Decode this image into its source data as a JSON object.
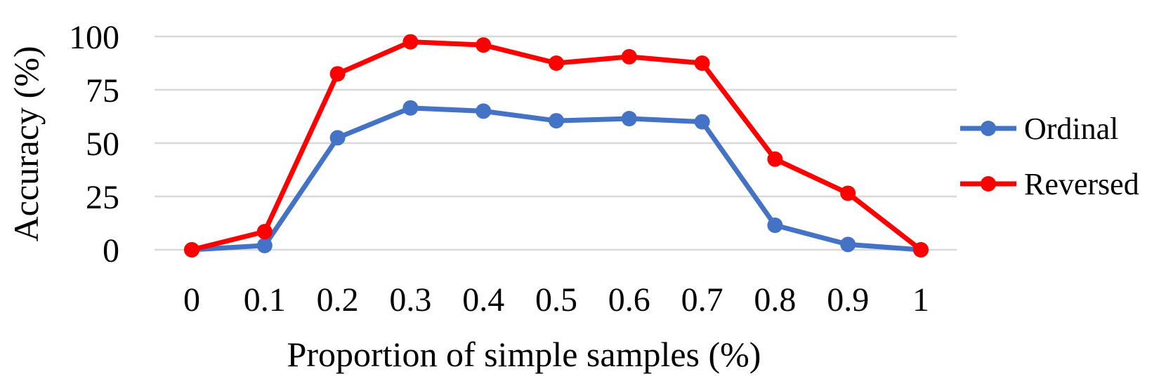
{
  "chart_data": {
    "type": "line",
    "title": "",
    "xlabel": "Proportion of simple samples (%)",
    "ylabel": "Accuracy (%)",
    "categories": [
      "0",
      "0.1",
      "0.2",
      "0.3",
      "0.4",
      "0.5",
      "0.6",
      "0.7",
      "0.8",
      "0.9",
      "1"
    ],
    "y_ticks": [
      "0",
      "25",
      "50",
      "75",
      "100"
    ],
    "ylim": [
      0,
      100
    ],
    "grid": "horizontal",
    "legend_position": "right",
    "series": [
      {
        "name": "Ordinal",
        "color": "#4472c4",
        "values": [
          0,
          2,
          52.5,
          66.5,
          65,
          60.5,
          61.5,
          60,
          11.5,
          2.5,
          0
        ]
      },
      {
        "name": "Reversed",
        "color": "#ff0000",
        "values": [
          0,
          8.5,
          82.5,
          97.5,
          96,
          87.5,
          90.5,
          87.5,
          42.5,
          26.5,
          0
        ]
      }
    ]
  }
}
